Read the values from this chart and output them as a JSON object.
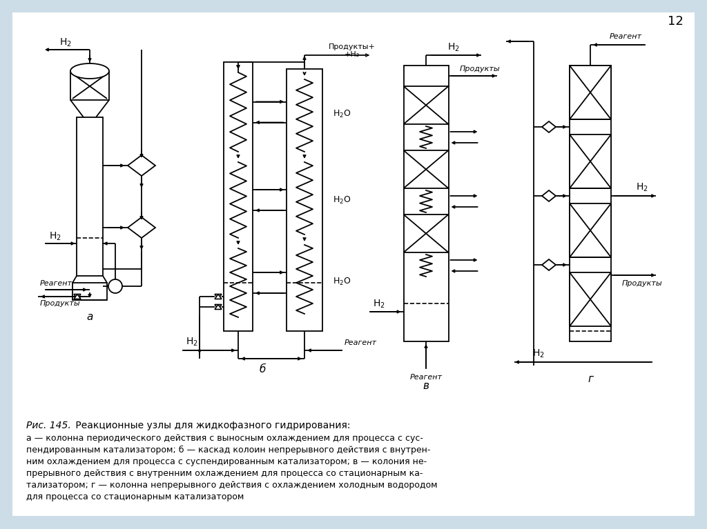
{
  "bg_color": "#ccdde8",
  "line_color": "#000000",
  "page_num": "12",
  "title_italic": "Рис. 145.",
  "title_normal": " Реакционные узлы для жидкофазного гидрирования:",
  "caption_lines": [
    "а — колонна периодического действия с выносным охлаждением для процесса с сус-",
    "пендированным катализатором; б — каскад колоин непрерывного действия с внутрен-",
    "ним охлаждением для процесса с суспендированным катализатором; в — колония не-",
    "прерывного действия с внутренним охлаждением для процесса со стационарным ка-",
    "тализатором; г — колонна непрерывного действия с охлаждением холодным водородом",
    "для процесса со стационарным катализатором"
  ],
  "label_a": "а",
  "label_b": "б",
  "label_v": "в",
  "label_g": "г"
}
